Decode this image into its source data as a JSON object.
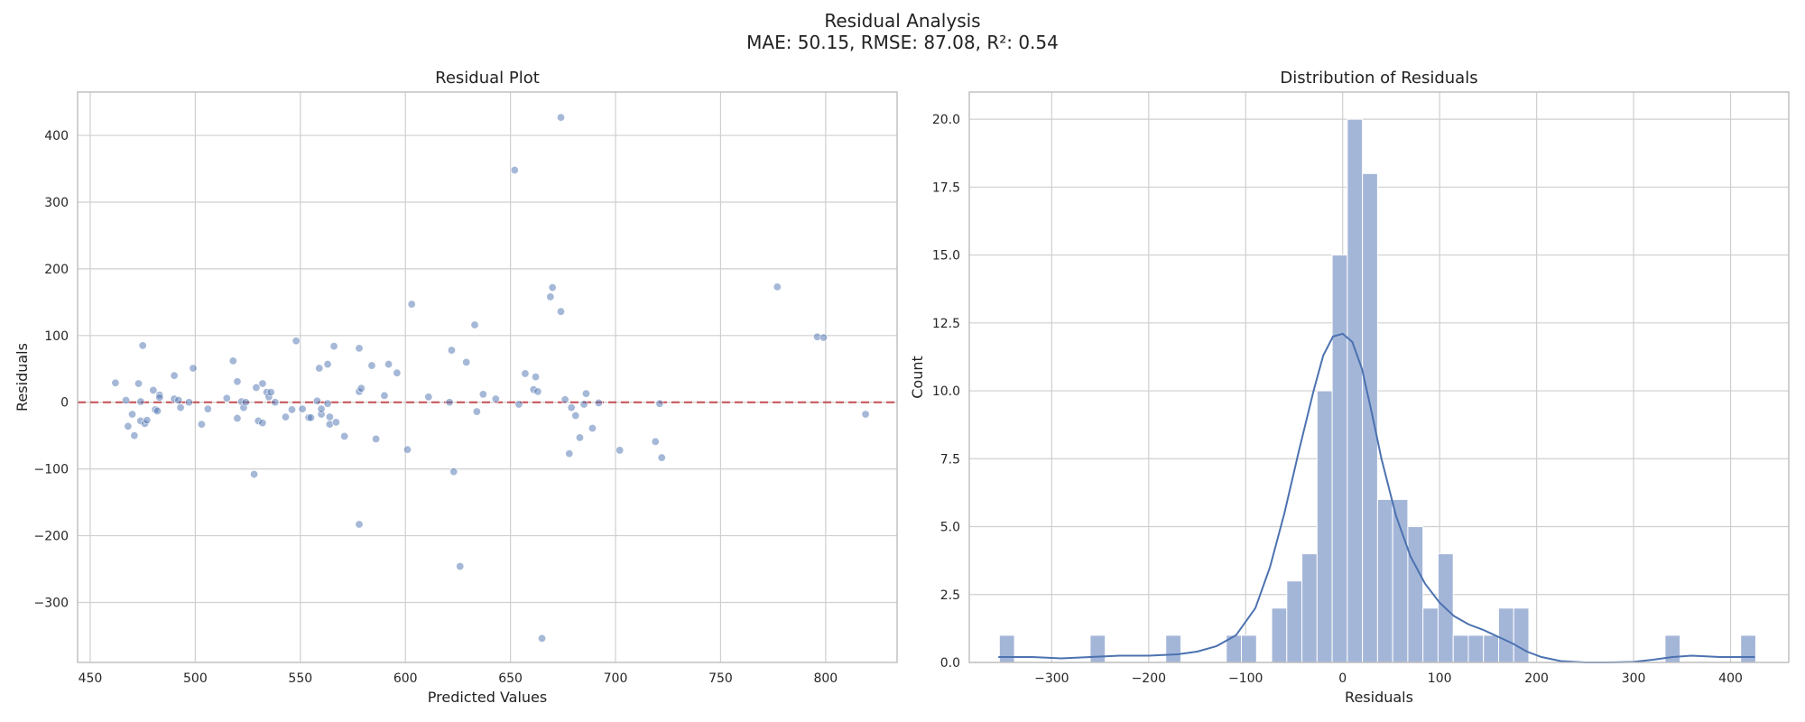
{
  "figure": {
    "title": "Residual Analysis",
    "subtitle": "MAE: 50.15, RMSE: 87.08, R²: 0.54"
  },
  "chart_data": [
    {
      "type": "scatter",
      "title": "Residual Plot",
      "xlabel": "Predicted Values",
      "ylabel": "Residuals",
      "xlim": [
        444,
        834
      ],
      "ylim": [
        -390,
        465
      ],
      "xticks": [
        450,
        500,
        550,
        600,
        650,
        700,
        750,
        800
      ],
      "yticks": [
        -300,
        -200,
        -100,
        0,
        100,
        200,
        300,
        400
      ],
      "ytick_labels": [
        "−300",
        "−200",
        "−100",
        "0",
        "100",
        "200",
        "300",
        "400"
      ],
      "grid": true,
      "reference_line": {
        "y": 0,
        "style": "dashed",
        "color": "#c44e52"
      },
      "point_color": "#4c72b0",
      "points": [
        [
          462,
          29
        ],
        [
          467,
          3
        ],
        [
          468,
          -36
        ],
        [
          470,
          -18
        ],
        [
          471,
          -50
        ],
        [
          473,
          28
        ],
        [
          474,
          1
        ],
        [
          474,
          -28
        ],
        [
          475,
          85
        ],
        [
          476,
          -32
        ],
        [
          477,
          -27
        ],
        [
          480,
          18
        ],
        [
          481,
          -11
        ],
        [
          482,
          -13
        ],
        [
          483,
          11
        ],
        [
          483,
          7
        ],
        [
          490,
          40
        ],
        [
          490,
          5
        ],
        [
          492,
          3
        ],
        [
          493,
          -8
        ],
        [
          497,
          0
        ],
        [
          499,
          51
        ],
        [
          503,
          -33
        ],
        [
          506,
          -10
        ],
        [
          515,
          6
        ],
        [
          518,
          62
        ],
        [
          520,
          31
        ],
        [
          520,
          -24
        ],
        [
          522,
          1
        ],
        [
          523,
          -8
        ],
        [
          524,
          0
        ],
        [
          528,
          -108
        ],
        [
          529,
          22
        ],
        [
          530,
          -28
        ],
        [
          532,
          -31
        ],
        [
          532,
          28
        ],
        [
          534,
          15
        ],
        [
          535,
          8
        ],
        [
          536,
          15
        ],
        [
          538,
          0
        ],
        [
          543,
          -22
        ],
        [
          546,
          -11
        ],
        [
          548,
          92
        ],
        [
          551,
          -10
        ],
        [
          554,
          -23
        ],
        [
          555,
          -23
        ],
        [
          558,
          2
        ],
        [
          559,
          51
        ],
        [
          560,
          -18
        ],
        [
          560,
          -10
        ],
        [
          563,
          57
        ],
        [
          563,
          -2
        ],
        [
          564,
          -22
        ],
        [
          564,
          -33
        ],
        [
          566,
          84
        ],
        [
          567,
          -30
        ],
        [
          571,
          -51
        ],
        [
          578,
          81
        ],
        [
          578,
          16
        ],
        [
          578,
          -183
        ],
        [
          579,
          21
        ],
        [
          584,
          55
        ],
        [
          586,
          -55
        ],
        [
          590,
          10
        ],
        [
          592,
          57
        ],
        [
          596,
          44
        ],
        [
          601,
          -71
        ],
        [
          603,
          147
        ],
        [
          611,
          8
        ],
        [
          621,
          0
        ],
        [
          622,
          78
        ],
        [
          623,
          -104
        ],
        [
          626,
          -246
        ],
        [
          629,
          60
        ],
        [
          633,
          116
        ],
        [
          634,
          -14
        ],
        [
          637,
          12
        ],
        [
          643,
          5
        ],
        [
          652,
          348
        ],
        [
          654,
          -3
        ],
        [
          657,
          43
        ],
        [
          661,
          19
        ],
        [
          662,
          38
        ],
        [
          663,
          16
        ],
        [
          665,
          -354
        ],
        [
          669,
          158
        ],
        [
          670,
          172
        ],
        [
          674,
          136
        ],
        [
          674,
          427
        ],
        [
          676,
          4
        ],
        [
          678,
          -77
        ],
        [
          679,
          -8
        ],
        [
          681,
          -20
        ],
        [
          683,
          -53
        ],
        [
          685,
          -3
        ],
        [
          686,
          13
        ],
        [
          689,
          -39
        ],
        [
          692,
          -1
        ],
        [
          702,
          -72
        ],
        [
          719,
          -59
        ],
        [
          721,
          -2
        ],
        [
          722,
          -83
        ],
        [
          777,
          173
        ],
        [
          796,
          98
        ],
        [
          799,
          97
        ],
        [
          819,
          -18
        ]
      ]
    },
    {
      "type": "bar",
      "subtype": "histogram_with_kde",
      "title": "Distribution of Residuals",
      "xlabel": "Residuals",
      "ylabel": "Count",
      "xlim": [
        -385,
        460
      ],
      "ylim": [
        0,
        21
      ],
      "xticks": [
        -300,
        -200,
        -100,
        0,
        100,
        200,
        300,
        400
      ],
      "xtick_labels": [
        "−300",
        "−200",
        "−100",
        "0",
        "100",
        "200",
        "300",
        "400"
      ],
      "yticks": [
        0,
        2.5,
        5,
        7.5,
        10,
        12.5,
        15,
        17.5,
        20
      ],
      "ytick_labels": [
        "0.0",
        "2.5",
        "5.0",
        "7.5",
        "10.0",
        "12.5",
        "15.0",
        "17.5",
        "20.0"
      ],
      "grid": true,
      "bar_color": "#a4b6d8",
      "kde_color": "#4c72b0",
      "bin_start": -354,
      "bin_width": 15.6,
      "counts": [
        1,
        0,
        0,
        0,
        0,
        0,
        1,
        0,
        0,
        0,
        0,
        1,
        0,
        0,
        0,
        1,
        1,
        0,
        2,
        3,
        4,
        10,
        15,
        20,
        18,
        6,
        6,
        5,
        2,
        4,
        1,
        1,
        1,
        2,
        2,
        0,
        0,
        0,
        0,
        0,
        0,
        0,
        0,
        0,
        1,
        0,
        0,
        0,
        0,
        1
      ],
      "kde_curve": [
        [
          -355,
          0.2
        ],
        [
          -320,
          0.2
        ],
        [
          -290,
          0.15
        ],
        [
          -260,
          0.2
        ],
        [
          -230,
          0.25
        ],
        [
          -200,
          0.25
        ],
        [
          -170,
          0.3
        ],
        [
          -150,
          0.4
        ],
        [
          -130,
          0.6
        ],
        [
          -110,
          1.0
        ],
        [
          -90,
          2.0
        ],
        [
          -75,
          3.5
        ],
        [
          -60,
          5.5
        ],
        [
          -45,
          7.8
        ],
        [
          -30,
          10.0
        ],
        [
          -20,
          11.3
        ],
        [
          -10,
          12.0
        ],
        [
          0,
          12.1
        ],
        [
          10,
          11.8
        ],
        [
          20,
          10.8
        ],
        [
          30,
          9.2
        ],
        [
          40,
          7.5
        ],
        [
          55,
          5.4
        ],
        [
          70,
          3.9
        ],
        [
          85,
          2.9
        ],
        [
          100,
          2.2
        ],
        [
          115,
          1.7
        ],
        [
          130,
          1.4
        ],
        [
          145,
          1.2
        ],
        [
          160,
          0.95
        ],
        [
          175,
          0.7
        ],
        [
          190,
          0.4
        ],
        [
          205,
          0.2
        ],
        [
          225,
          0.05
        ],
        [
          250,
          0.0
        ],
        [
          275,
          0.0
        ],
        [
          300,
          0.02
        ],
        [
          320,
          0.1
        ],
        [
          340,
          0.2
        ],
        [
          360,
          0.25
        ],
        [
          390,
          0.2
        ],
        [
          425,
          0.2
        ]
      ]
    }
  ]
}
